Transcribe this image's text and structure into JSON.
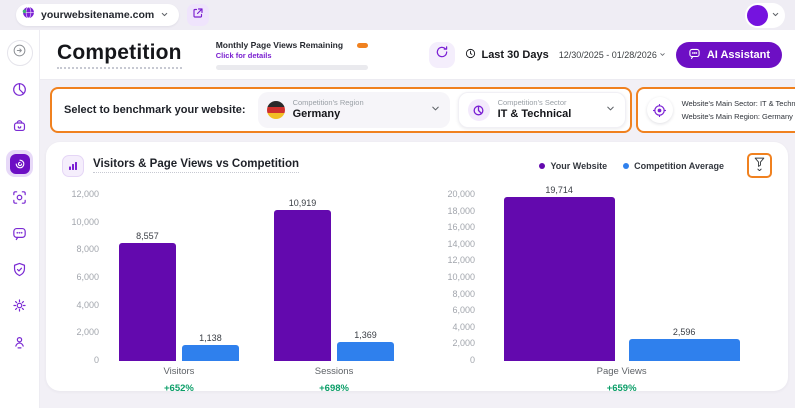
{
  "colors": {
    "accent_purple": "#6D0FC4",
    "bar_purple": "#6309AE",
    "bar_blue": "#2F80ED",
    "positive_green": "#0B9E68",
    "highlight_orange": "#F0811F"
  },
  "top_bar": {
    "site_name": "yourwebsitename.com",
    "favicon": "website-globe-icon",
    "open_site_icon": "external-link-icon",
    "avatar_icon": "user-avatar"
  },
  "sidebar": {
    "expand_icon": "expand-sidebar-icon",
    "items": [
      {
        "icon": "pie-chart-icon",
        "active": false
      },
      {
        "icon": "bag-icon",
        "active": false
      },
      {
        "icon": "radar-icon",
        "active": true
      },
      {
        "icon": "target-scan-icon",
        "active": false
      },
      {
        "icon": "chat-icon",
        "active": false
      },
      {
        "icon": "shield-check-icon",
        "active": false
      },
      {
        "icon": "gear-icon",
        "active": false
      },
      {
        "icon": "person-pin-icon",
        "active": false
      }
    ]
  },
  "header": {
    "title": "Competition",
    "quota": {
      "label": "Monthly Page Views Remaining",
      "link": "Click for details"
    },
    "period_label": "Last 30 Days",
    "date_range": "12/30/2025 - 01/28/2026",
    "ai_assistant_label": "AI Assistant"
  },
  "benchmark": {
    "prompt": "Select to benchmark your website:",
    "region_select": {
      "label": "Competition's Region",
      "value": "Germany",
      "icon": "germany-flag-icon"
    },
    "sector_select": {
      "label": "Competition's Sector",
      "value": "IT & Technical",
      "icon": "sector-pie-icon"
    },
    "website_summary": {
      "line1": "Website's Main Sector: IT & Technical",
      "line2": "Website's Main Region: Germany",
      "icon": "website-target-icon"
    }
  },
  "chart_card": {
    "icon": "bar-chart-icon",
    "title": "Visitors & Page Views vs Competition",
    "legend": [
      {
        "label": "Your Website",
        "color": "#6309AE"
      },
      {
        "label": "Competition Average",
        "color": "#2F80ED"
      }
    ],
    "filter_icon": "filter-funnel-icon"
  },
  "chart_data": [
    {
      "type": "bar",
      "categories": [
        "Visitors",
        "Sessions"
      ],
      "series": [
        {
          "name": "Your Website",
          "color": "#6309AE",
          "values": [
            8557,
            10919
          ]
        },
        {
          "name": "Competition Average",
          "color": "#2F80ED",
          "values": [
            1138,
            1369
          ]
        }
      ],
      "value_labels": [
        [
          "8,557",
          "10,919"
        ],
        [
          "1,138",
          "1,369"
        ]
      ],
      "delta_labels": [
        "+652%",
        "+698%"
      ],
      "ylim": [
        0,
        12000
      ],
      "ytick_step": 2000,
      "yticks": [
        "12,000",
        "10,000",
        "8,000",
        "6,000",
        "4,000",
        "2,000",
        "0"
      ],
      "grid": false,
      "legend_position": "top-right"
    },
    {
      "type": "bar",
      "categories": [
        "Page Views"
      ],
      "series": [
        {
          "name": "Your Website",
          "color": "#6309AE",
          "values": [
            19714
          ]
        },
        {
          "name": "Competition Average",
          "color": "#2F80ED",
          "values": [
            2596
          ]
        }
      ],
      "value_labels": [
        [
          "19,714"
        ],
        [
          "2,596"
        ]
      ],
      "delta_labels": [
        "+659%"
      ],
      "ylim": [
        0,
        20000
      ],
      "ytick_step": 2000,
      "yticks": [
        "20,000",
        "18,000",
        "16,000",
        "14,000",
        "12,000",
        "10,000",
        "8,000",
        "6,000",
        "4,000",
        "2,000",
        "0"
      ],
      "grid": false,
      "legend_position": "top-right"
    }
  ]
}
